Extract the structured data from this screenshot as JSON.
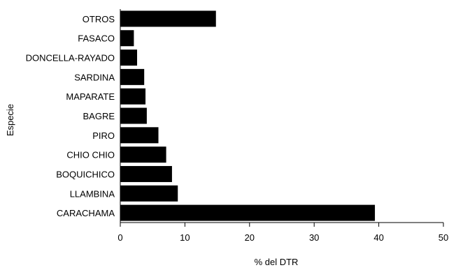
{
  "chart_data": {
    "type": "bar",
    "orientation": "horizontal",
    "categories": [
      "OTROS",
      "FASACO",
      "DONCELLA-RAYADO",
      "SARDINA",
      "MAPARATE",
      "BAGRE",
      "PIRO",
      "CHIO CHIO",
      "BOQUICHICO",
      "LLAMBINA",
      "CARACHAMA"
    ],
    "values": [
      14.8,
      2.1,
      2.6,
      3.7,
      3.9,
      4.1,
      5.9,
      7.1,
      8.0,
      8.9,
      39.4
    ],
    "title": "",
    "xlabel": "% del DTR",
    "ylabel": "Especie",
    "xlim": [
      0,
      50
    ],
    "xticks": [
      "0",
      "10",
      "20",
      "30",
      "40",
      "50"
    ],
    "grid": false,
    "legend": "none",
    "bar_color": "#000000"
  }
}
